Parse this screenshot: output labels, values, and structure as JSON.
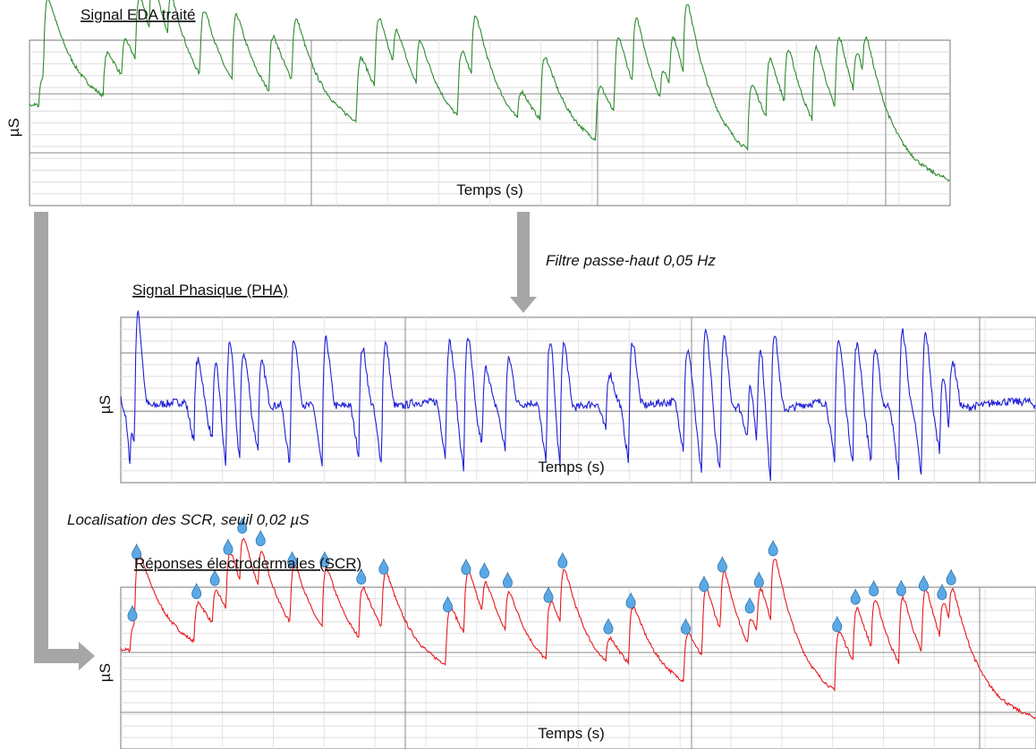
{
  "panels": [
    {
      "title": "Signal EDA traité",
      "y_label": "µS",
      "x_label": "Temps (s)"
    },
    {
      "title": "Signal Phasique (PHA)",
      "y_label": "µS",
      "x_label": "Temps (s)"
    },
    {
      "title": "Réponses électrodermales (SCR)",
      "y_label": "µS",
      "x_label": "Temps (s)"
    }
  ],
  "arrows": [
    {
      "label": "Filtre passe-haut 0,05 Hz"
    },
    {
      "label": "Localisation des SCR, seuil 0,02 µS"
    }
  ]
}
